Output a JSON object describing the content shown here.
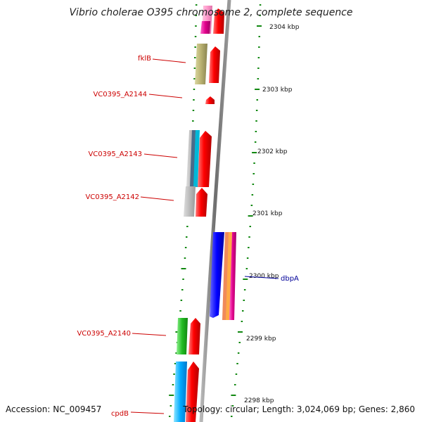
{
  "title": "Vibrio cholerae O395 chromosome 2, complete sequence",
  "accession": "Accession: NC_009457",
  "topology": "Topology: circular; Length: 3,024,069 bp; Genes: 2,860",
  "colors": {
    "backbone": "#7f7f7f",
    "tick_green": "#118811",
    "label_red": "#cc0000",
    "label_blue": "#000099"
  },
  "scale_labels": [
    "2304 kbp",
    "2303 kbp",
    "2302 kbp",
    "2301 kbp",
    "2300 kbp",
    "2299 kbp",
    "2298 kbp"
  ],
  "gene_labels": [
    {
      "name": "fklB",
      "color": "red"
    },
    {
      "name": "VC0395_A2144",
      "color": "red"
    },
    {
      "name": "VC0395_A2143",
      "color": "red"
    },
    {
      "name": "VC0395_A2142",
      "color": "red"
    },
    {
      "name": "dbpA",
      "color": "blue"
    },
    {
      "name": "VC0395_A2140",
      "color": "red"
    },
    {
      "name": "cpdB",
      "color": "red"
    }
  ]
}
